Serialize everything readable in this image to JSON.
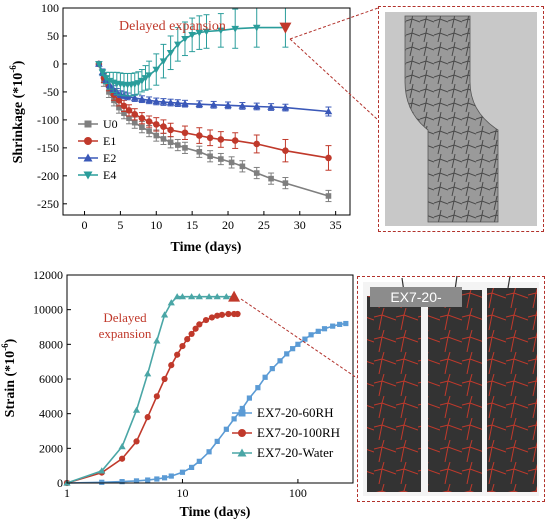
{
  "chart_data": [
    {
      "type": "line",
      "xlabel": "Time (days)",
      "ylabel": "Shrinkage (*10",
      "ylabel_exponent": "-6",
      "ylabel_close": ")",
      "xlim": [
        -3,
        37
      ],
      "ylim": [
        -270,
        100
      ],
      "xticks": [
        0,
        5,
        10,
        15,
        20,
        25,
        30,
        35
      ],
      "yticks": [
        -250,
        -200,
        -150,
        -100,
        -50,
        0,
        50,
        100
      ],
      "grid": false,
      "legend_position": "left",
      "annotation": "Delayed  expansion",
      "series": [
        {
          "name": "U0",
          "color": "#7f7f7f",
          "marker": "square",
          "x": [
            2,
            2.7,
            3.4,
            4.1,
            4.8,
            5.5,
            6.2,
            7,
            8,
            9,
            10,
            11,
            12,
            13,
            14,
            16,
            17.5,
            19,
            20.5,
            22,
            24,
            26,
            28,
            34
          ],
          "y": [
            0,
            -30,
            -50,
            -65,
            -78,
            -88,
            -97,
            -105,
            -113,
            -120,
            -128,
            -134,
            -140,
            -145,
            -150,
            -157,
            -165,
            -170,
            -176,
            -183,
            -195,
            -205,
            -213,
            -236
          ],
          "errors": [
            0,
            10,
            10,
            10,
            10,
            10,
            10,
            10,
            10,
            10,
            10,
            10,
            10,
            10,
            10,
            10,
            10,
            10,
            10,
            10,
            10,
            10,
            10,
            10
          ]
        },
        {
          "name": "E1",
          "color": "#c0392b",
          "marker": "circle",
          "x": [
            2,
            2.7,
            3.4,
            4.1,
            4.8,
            5.5,
            6.2,
            7,
            8,
            9,
            10,
            11,
            12,
            14,
            16,
            17.5,
            19,
            21,
            24,
            28,
            34
          ],
          "y": [
            0,
            -25,
            -40,
            -55,
            -65,
            -75,
            -83,
            -90,
            -97,
            -103,
            -108,
            -112,
            -118,
            -123,
            -128,
            -132,
            -135,
            -137,
            -143,
            -155,
            -168
          ],
          "errors": [
            0,
            8,
            8,
            10,
            10,
            10,
            10,
            10,
            10,
            10,
            12,
            12,
            12,
            12,
            14,
            14,
            14,
            14,
            16,
            20,
            22
          ]
        },
        {
          "name": "E2",
          "color": "#3a58b8",
          "marker": "triangle",
          "x": [
            2,
            2.5,
            3,
            3.5,
            4,
            4.5,
            5,
            5.5,
            6,
            7,
            8,
            9,
            10,
            11,
            12,
            13,
            14,
            16,
            18,
            20,
            22,
            24,
            26,
            28,
            34
          ],
          "y": [
            0,
            -15,
            -28,
            -38,
            -45,
            -50,
            -54,
            -56,
            -58,
            -61,
            -63,
            -65,
            -67,
            -68,
            -69,
            -70,
            -71,
            -72,
            -73,
            -74,
            -75,
            -76,
            -77,
            -78,
            -85
          ],
          "errors": [
            0,
            6,
            6,
            6,
            6,
            6,
            6,
            6,
            6,
            6,
            6,
            6,
            6,
            6,
            6,
            6,
            6,
            6,
            6,
            6,
            6,
            6,
            6,
            6,
            8
          ]
        },
        {
          "name": "E4",
          "color": "#2a9d9b",
          "marker": "triangle-down",
          "x": [
            2,
            2.5,
            3,
            3.5,
            4,
            4.5,
            5,
            5.5,
            6,
            6.5,
            7,
            7.5,
            8,
            8.5,
            9,
            10,
            11,
            12,
            13,
            14,
            15,
            16,
            17,
            19,
            21,
            24,
            28
          ],
          "y": [
            0,
            -15,
            -25,
            -30,
            -33,
            -35,
            -36,
            -37,
            -37,
            -37,
            -36,
            -34,
            -30,
            -25,
            -20,
            -10,
            5,
            20,
            35,
            45,
            52,
            56,
            58,
            60,
            63,
            65,
            65
          ],
          "errors": [
            0,
            5,
            10,
            15,
            18,
            20,
            20,
            20,
            20,
            20,
            20,
            20,
            20,
            22,
            25,
            28,
            30,
            30,
            30,
            30,
            30,
            30,
            30,
            30,
            35,
            35,
            35
          ],
          "highlight_last": true
        }
      ]
    },
    {
      "type": "line",
      "xscale": "log",
      "xlabel": "Time (days)",
      "ylabel": "Strain (*10",
      "ylabel_exponent": "-6",
      "ylabel_close": ")",
      "xlim": [
        1,
        300
      ],
      "ylim": [
        0,
        12000
      ],
      "xticks": [
        1,
        10,
        100
      ],
      "yticks": [
        0,
        2000,
        4000,
        6000,
        8000,
        10000,
        12000
      ],
      "grid": false,
      "legend_position": "bottom-right",
      "annotation": [
        "Delayed",
        "expansion"
      ],
      "series": [
        {
          "name": "EX7-20-60RH",
          "color": "#5b9bd5",
          "marker": "square",
          "x": [
            1,
            2,
            3,
            4,
            5,
            6,
            7,
            8,
            10,
            12,
            14,
            17,
            20,
            24,
            28,
            33,
            38,
            45,
            52,
            60,
            70,
            80,
            90,
            100,
            115,
            130,
            150,
            170,
            200,
            230,
            260
          ],
          "y": [
            0,
            40,
            80,
            120,
            170,
            230,
            300,
            400,
            620,
            900,
            1250,
            1800,
            2400,
            3100,
            3700,
            4300,
            4900,
            5500,
            6100,
            6600,
            7050,
            7450,
            7750,
            8000,
            8300,
            8550,
            8750,
            8900,
            9050,
            9150,
            9200
          ]
        },
        {
          "name": "EX7-20-100RH",
          "color": "#c0392b",
          "marker": "circle",
          "x": [
            1,
            2,
            3,
            4,
            5,
            6,
            7,
            8,
            9,
            10,
            11,
            12,
            13,
            14,
            16,
            18,
            20,
            22,
            25,
            28,
            30
          ],
          "y": [
            0,
            600,
            1400,
            2400,
            3800,
            5000,
            6000,
            6800,
            7400,
            7900,
            8300,
            8600,
            8900,
            9150,
            9400,
            9550,
            9650,
            9700,
            9750,
            9750,
            9750
          ]
        },
        {
          "name": "EX7-20-Water",
          "color": "#4aa6a6",
          "marker": "triangle",
          "x": [
            1,
            2,
            3,
            4,
            5,
            6,
            7,
            8,
            9,
            10,
            12,
            14,
            17,
            20,
            24,
            28
          ],
          "y": [
            0,
            700,
            2100,
            4200,
            6300,
            8200,
            9700,
            10400,
            10750,
            10750,
            10750,
            10750,
            10750,
            10750,
            10750,
            10750
          ],
          "highlight_last": true
        }
      ]
    }
  ],
  "photo_label": "EX7-20-"
}
